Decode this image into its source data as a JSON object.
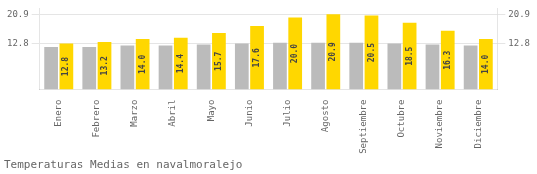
{
  "chart_data": {
    "type": "bar",
    "title": "Temperaturas Medias en navalmoralejo",
    "categories": [
      "Enero",
      "Febrero",
      "Marzo",
      "Abril",
      "Mayo",
      "Junio",
      "Julio",
      "Agosto",
      "Septiembre",
      "Octubre",
      "Noviembre",
      "Diciembre"
    ],
    "series": [
      {
        "color": "#BBBBBB",
        "values": [
          11.8,
          11.8,
          12.2,
          12.2,
          12.5,
          12.8,
          13.0,
          13.0,
          13.0,
          12.8,
          12.5,
          12.2
        ]
      },
      {
        "color": "#FFD700",
        "values": [
          12.8,
          13.2,
          14.0,
          14.4,
          15.7,
          17.6,
          20.0,
          20.9,
          20.5,
          18.5,
          16.3,
          14.0
        ],
        "value_labels": [
          "12.8",
          "13.2",
          "14.0",
          "14.4",
          "15.7",
          "17.6",
          "20.0",
          "20.9",
          "20.5",
          "18.5",
          "16.3",
          "14.0"
        ],
        "data_labels": true
      }
    ],
    "ylim": [
      0,
      22.5
    ],
    "yticks": [
      12.8,
      20.9
    ],
    "y2lim": [
      0,
      22.5
    ],
    "y2ticks": [
      12.8,
      20.9
    ],
    "grid": true
  }
}
